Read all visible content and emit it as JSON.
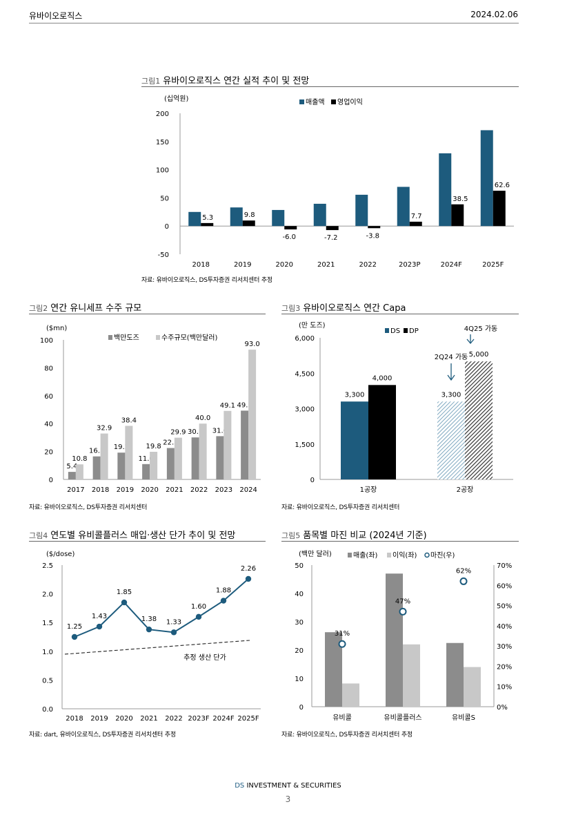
{
  "header": {
    "company": "유바이오로직스",
    "date": "2024.02.06"
  },
  "colors": {
    "navy": "#1d5b7d",
    "black": "#000000",
    "darkgray": "#8c8c8c",
    "lightgray": "#c8c8c8",
    "line": "#1d5b7d",
    "hatch_blue": "#7fa8c0"
  },
  "fig1": {
    "label": "그림1",
    "title": "유바이오로직스 연간 실적 추이 및 전망",
    "unit": "(십억원)",
    "source": "자료: 유바이오로직스, DS투자증권 리서치센터 추정",
    "chart_data": {
      "type": "bar",
      "categories": [
        "2018",
        "2019",
        "2020",
        "2021",
        "2022",
        "2023P",
        "2024F",
        "2025F"
      ],
      "series": [
        {
          "name": "매출액",
          "values": [
            25,
            33,
            28.5,
            39.5,
            55.5,
            69.5,
            129,
            170
          ],
          "labels": [
            "",
            "",
            "",
            "",
            "",
            "",
            "",
            ""
          ]
        },
        {
          "name": "영업이익",
          "values": [
            5.3,
            9.8,
            -6.0,
            -7.2,
            -3.8,
            7.7,
            38.5,
            62.6
          ],
          "labels": [
            "5.3",
            "9.8",
            "-6.0",
            "-7.2",
            "-3.8",
            "7.7",
            "38.5",
            "62.6"
          ]
        }
      ],
      "ylim": [
        -50,
        200
      ],
      "yticks": [
        "200",
        "150",
        "100",
        "50",
        "0",
        "-50"
      ]
    }
  },
  "fig2": {
    "label": "그림2",
    "title": "연간 유니세프 수주 규모",
    "unit": "($mn)",
    "source": "자료: 유바이오로직스, DS투자증권 리서치센터",
    "chart_data": {
      "type": "bar",
      "categories": [
        "2017",
        "2018",
        "2019",
        "2020",
        "2021",
        "2022",
        "2023",
        "2024"
      ],
      "series": [
        {
          "name": "백만도즈",
          "values": [
            5.4,
            16.5,
            19.2,
            11.0,
            22.5,
            30.1,
            31.0,
            49.3
          ],
          "labels": [
            "5.4",
            "16.5",
            "19.2",
            "11.0",
            "22.5",
            "30.1",
            "31.0",
            "49.3"
          ]
        },
        {
          "name": "수주규모(백만달러)",
          "values": [
            10.8,
            32.9,
            38.4,
            19.8,
            29.9,
            40.0,
            49.1,
            93.0
          ],
          "labels": [
            "10.8",
            "32.9",
            "38.4",
            "19.8",
            "29.9",
            "40.0",
            "49.1",
            "93.0"
          ]
        }
      ],
      "ylim": [
        0,
        100
      ],
      "yticks": [
        "100",
        "80",
        "60",
        "40",
        "20",
        "0"
      ]
    }
  },
  "fig3": {
    "label": "그림3",
    "title": "유바이오로직스 연간 Capa",
    "unit": "(만 도즈)",
    "source": "자료: 유바이오로직스, DS투자증권 리서치센터",
    "chart_data": {
      "type": "bar",
      "categories": [
        "1공장",
        "2공장"
      ],
      "series": [
        {
          "name": "DS",
          "values": [
            3300,
            3300
          ],
          "labels": [
            "3,300",
            "3,300"
          ]
        },
        {
          "name": "DP",
          "values": [
            4000,
            5000
          ],
          "labels": [
            "4,000",
            "5,000"
          ]
        }
      ],
      "ylim": [
        0,
        6000
      ],
      "yticks": [
        "6,000",
        "4,500",
        "3,000",
        "1,500",
        "0"
      ],
      "annotations": [
        "2Q24 가동",
        "4Q25 가동"
      ]
    }
  },
  "fig4": {
    "label": "그림4",
    "title": "연도별 유비콜플러스 매입·생산 단가 추이 및 전망",
    "unit": "($/dose)",
    "source": "자료: dart, 유바이오로직스, DS투자증권 리서치센터 추정",
    "chart_data": {
      "type": "line",
      "categories": [
        "2018",
        "2019",
        "2020",
        "2021",
        "2022",
        "2023F",
        "2024F",
        "2025F"
      ],
      "series": [
        {
          "name": "",
          "values": [
            1.25,
            1.43,
            1.85,
            1.38,
            1.33,
            1.6,
            1.88,
            2.26
          ],
          "labels": [
            "1.25",
            "1.43",
            "1.85",
            "1.38",
            "1.33",
            "1.60",
            "1.88",
            "2.26"
          ]
        }
      ],
      "trend": {
        "name": "추정 생산 단가",
        "start": 0.95,
        "end": 1.19
      },
      "ylim": [
        0,
        2.5
      ],
      "yticks": [
        "2.5",
        "2.0",
        "1.5",
        "1.0",
        "0.5",
        "0.0"
      ]
    }
  },
  "fig5": {
    "label": "그림5",
    "title": "품목별 마진 비교 (2024년 기준)",
    "unit": "(백만 달러)",
    "source": "자료: 유바이오로직스, DS투자증권 리서치센터 추정",
    "chart_data": {
      "type": "bar",
      "categories": [
        "유비콜",
        "유비콜플러스",
        "유비콜S"
      ],
      "series": [
        {
          "name": "매출(좌)",
          "values": [
            26.3,
            47,
            22.5
          ]
        },
        {
          "name": "이익(좌)",
          "values": [
            8.2,
            22,
            14
          ]
        },
        {
          "name": "마진(우)",
          "values": [
            31,
            47,
            62
          ],
          "labels": [
            "31%",
            "47%",
            "62%"
          ]
        }
      ],
      "ylim_left": [
        0,
        50
      ],
      "ylim_right": [
        0,
        70
      ],
      "yticks_left": [
        "50",
        "40",
        "30",
        "20",
        "10",
        "0"
      ],
      "yticks_right": [
        "70%",
        "60%",
        "50%",
        "40%",
        "30%",
        "20%",
        "10%",
        "0%"
      ]
    }
  },
  "footer": {
    "brand_ds": "DS",
    "brand_rest": " INVESTMENT & SECURITIES",
    "page": "3"
  }
}
